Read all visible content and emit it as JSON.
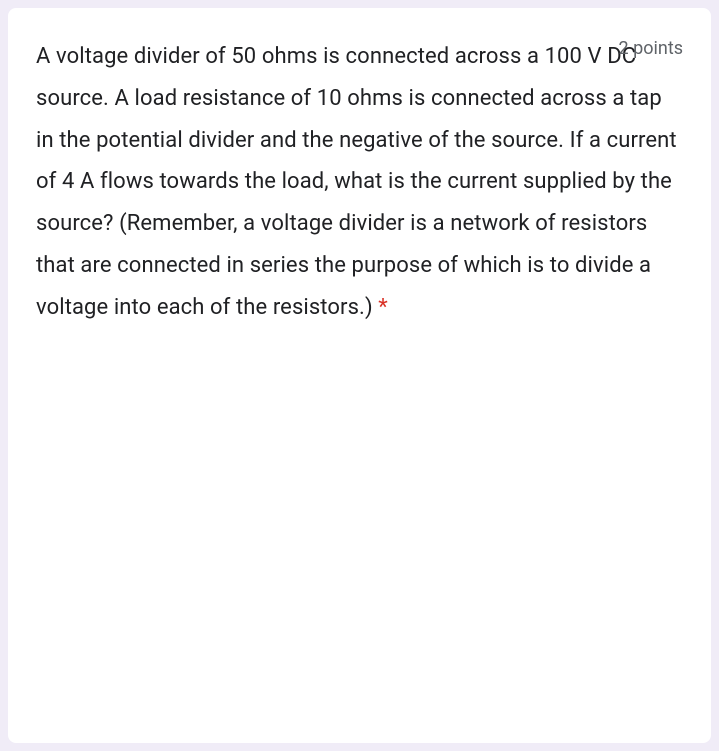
{
  "question": {
    "text": "A voltage divider of 50 ohms is connected across a 100 V DC source. A load resistance of 10 ohms is connected across a tap in the potential divider and the negative of the source. If a current of 4 A flows towards the load, what is the current supplied by the source? (Remember, a voltage divider is a network of resistors that are connected in series the purpose of which is to divide a voltage into each of the resistors.)",
    "points_label": "2 points",
    "required": true,
    "asterisk": "*"
  },
  "styling": {
    "background_color": "#f0ecf7",
    "card_background": "#ffffff",
    "text_color": "#202124",
    "points_color": "#5f6368",
    "required_color": "#d93025",
    "question_fontsize": 22,
    "points_fontsize": 18,
    "line_height": 1.9,
    "card_radius": 8
  }
}
